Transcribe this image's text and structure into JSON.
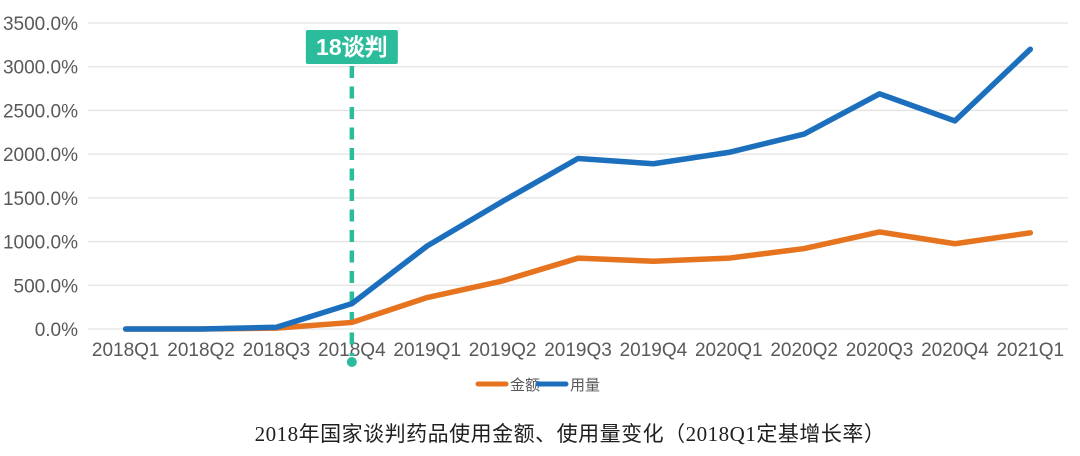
{
  "chart_data": {
    "type": "line",
    "title": "2018年国家谈判药品使用金额、使用量变化（2018Q1定基增长率）",
    "categories": [
      "2018Q1",
      "2018Q2",
      "2018Q3",
      "2018Q4",
      "2019Q1",
      "2019Q2",
      "2019Q3",
      "2019Q4",
      "2020Q1",
      "2020Q2",
      "2020Q3",
      "2020Q4",
      "2021Q1"
    ],
    "series": [
      {
        "name": "金额",
        "color": "#E6731E",
        "values": [
          0,
          0,
          10,
          75,
          360,
          550,
          810,
          775,
          810,
          920,
          1110,
          975,
          1100
        ]
      },
      {
        "name": "用量",
        "color": "#1B6FBC",
        "values": [
          0,
          0,
          20,
          290,
          950,
          1460,
          1950,
          1890,
          2020,
          2230,
          2690,
          2380,
          3200
        ]
      }
    ],
    "unit": "%",
    "ylim": [
      0,
      3500
    ],
    "y_ticks": [
      "3500.0%",
      "3000.0%",
      "2500.0%",
      "2000.0%",
      "1500.0%",
      "1000.0%",
      "500.0%",
      "0.0%"
    ],
    "grid": true,
    "legend_position": "bottom",
    "annotation": {
      "label": "18谈判",
      "category": "2018Q4",
      "color": "#2BBD9B"
    }
  },
  "colors": {
    "grid": "#E3E3E3",
    "axis_label": "#595959",
    "annotation_teal": "#2BBD9B",
    "title_text": "#1F1F1F",
    "background": "#FFFFFF"
  }
}
